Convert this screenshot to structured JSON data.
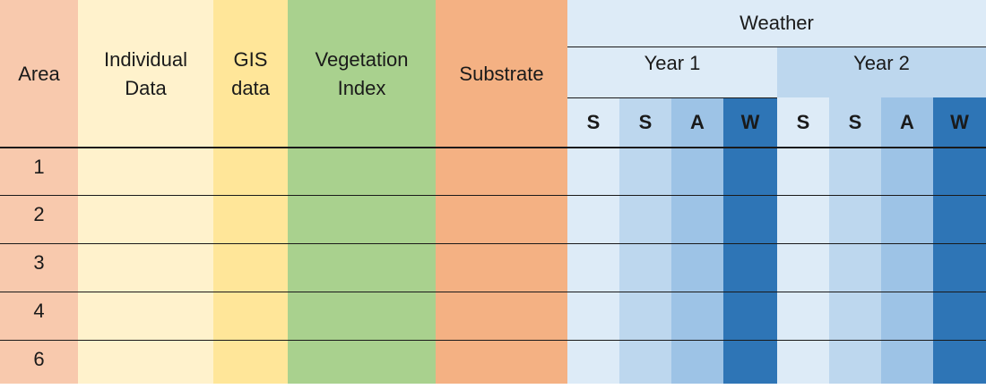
{
  "headers": {
    "area": "Area",
    "individual_data": [
      "Individual",
      "Data"
    ],
    "gis_data": [
      "GIS",
      "data"
    ],
    "vegetation_index": [
      "Vegetation",
      "Index"
    ],
    "substrate": "Substrate",
    "weather": "Weather",
    "years": [
      "Year 1",
      "Year 2"
    ],
    "seasons": [
      "S",
      "S",
      "A",
      "W",
      "S",
      "S",
      "A",
      "W"
    ]
  },
  "rows": [
    "1",
    "2",
    "3",
    "4",
    "6"
  ],
  "colors": {
    "area": "#f8c9ad",
    "individual_data": "#fff2cc",
    "gis_data": "#ffe699",
    "vegetation_index": "#a9d18e",
    "substrate": "#f4b183",
    "weather_light": "#ddebf7",
    "weather_mid": "#bdd7ee",
    "weather_strong": "#9dc3e6",
    "weather_dark": "#2e75b6"
  }
}
